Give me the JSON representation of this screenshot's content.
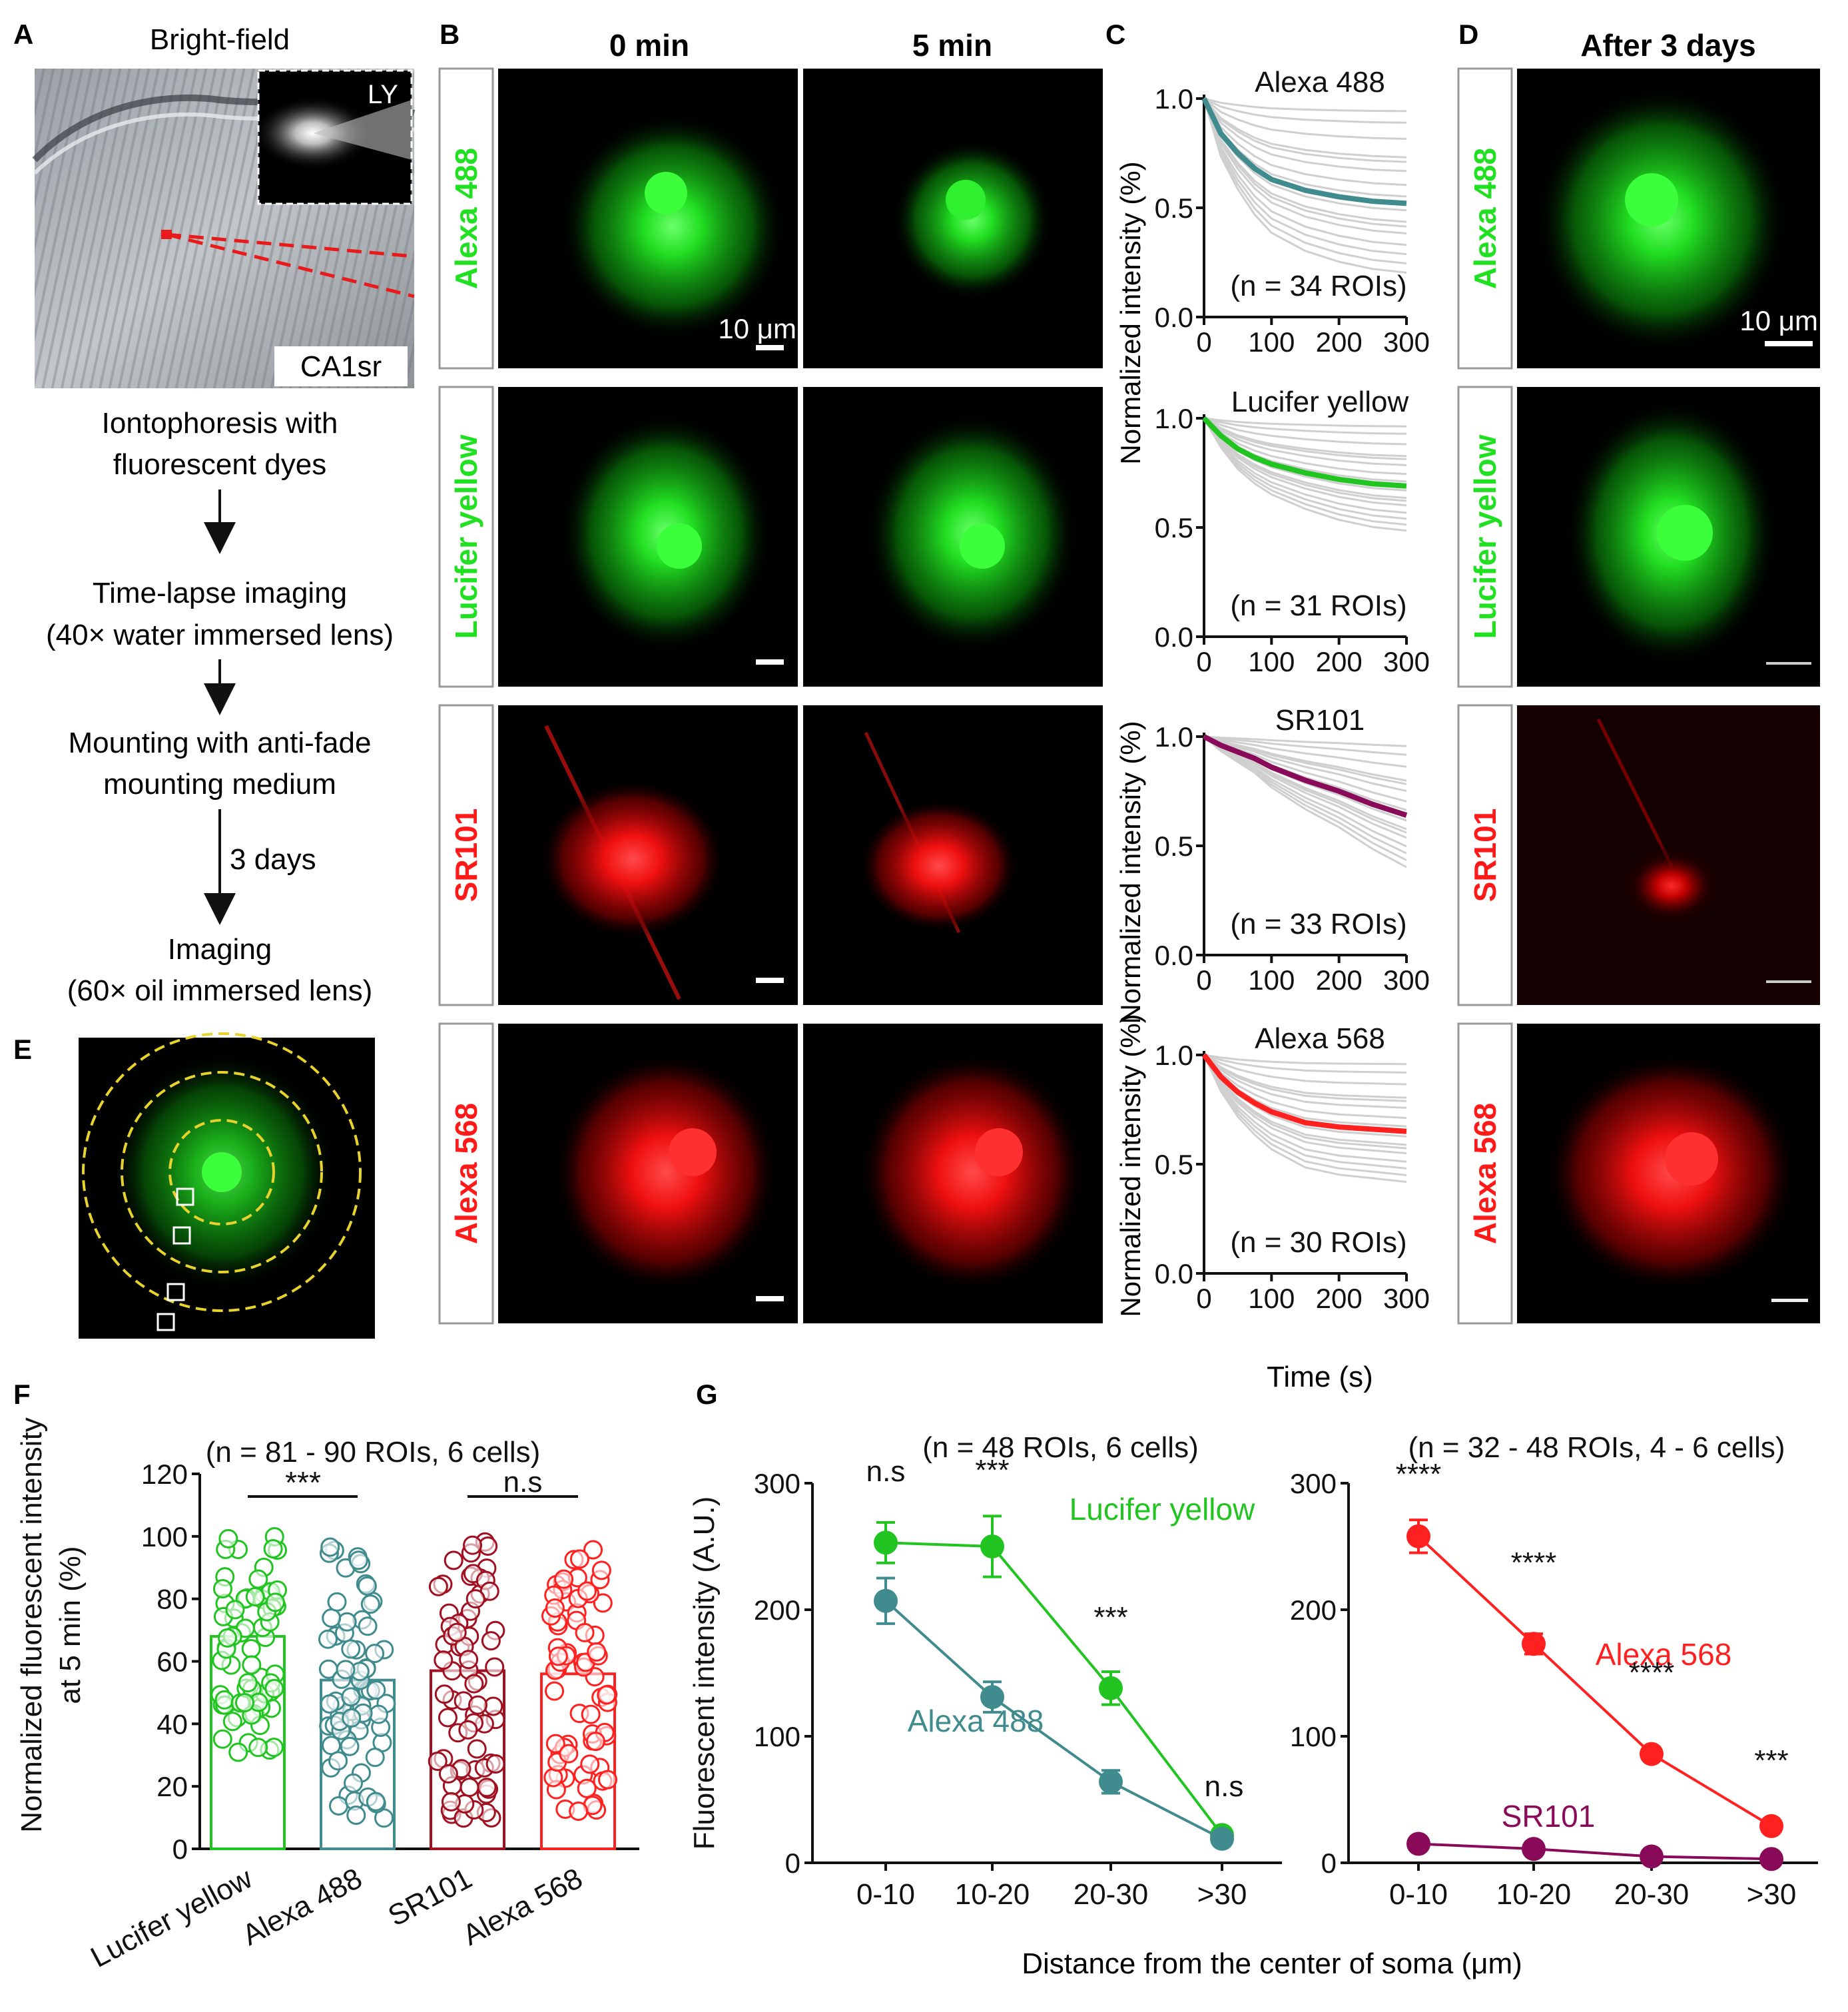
{
  "panels": {
    "A": "A",
    "B": "B",
    "C": "C",
    "D": "D",
    "E": "E",
    "F": "F",
    "G": "G"
  },
  "colors": {
    "alexa488": "#21e021",
    "lucifer": "#21e021",
    "sr101": "#ff1a1a",
    "alexa568": "#ff1a1a",
    "teal": "#3f8b8e",
    "green": "#22c422",
    "maroon": "#8a0a5a",
    "red": "#ff2020",
    "ring": "#e8d22c"
  },
  "panelA": {
    "title": "Bright-field",
    "inset_label": "LY",
    "region_label": "CA1sr",
    "steps": [
      "Iontophoresis with",
      "fluorescent dyes",
      "Time-lapse imaging",
      "(40× water immersed lens)",
      "Mounting with anti-fade",
      "mounting medium",
      "Imaging",
      "(60× oil immersed lens)"
    ],
    "arrow_label": "3 days"
  },
  "panelB": {
    "col_headers": [
      "0 min",
      "5 min"
    ],
    "row_labels": [
      "Alexa 488",
      "Lucifer yellow",
      "SR101",
      "Alexa 568"
    ],
    "scale_text": "10 μm"
  },
  "panelC": {
    "ylabel": "Normalized intensity (%)",
    "xlabel": "Time (s)",
    "yticks": [
      "0.0",
      "0.5",
      "1.0"
    ],
    "xticks": [
      "0",
      "100",
      "200",
      "300"
    ],
    "titles": [
      "Alexa 488",
      "Lucifer yellow",
      "SR101",
      "Alexa 568"
    ],
    "n_labels": [
      "(n = 34 ROIs)",
      "(n = 31 ROIs)",
      "(n = 33 ROIs)",
      "(n = 30 ROIs)"
    ]
  },
  "panelD": {
    "header": "After 3 days",
    "row_labels": [
      "Alexa 488",
      "Lucifer yellow",
      "SR101",
      "Alexa 568"
    ],
    "scale_text": "10 μm"
  },
  "chart_data": [
    {
      "type": "line",
      "title": "Alexa 488",
      "n": "(n = 34 ROIs)",
      "xlabel": "Time (s)",
      "ylabel": "Normalized intensity (%)",
      "xlim": [
        0,
        300
      ],
      "ylim": [
        0,
        1
      ],
      "mean_curve": {
        "x": [
          0,
          25,
          50,
          75,
          100,
          150,
          200,
          250,
          300
        ],
        "y": [
          1.0,
          0.84,
          0.75,
          0.68,
          0.63,
          0.58,
          0.55,
          0.53,
          0.52
        ]
      }
    },
    {
      "type": "line",
      "title": "Lucifer yellow",
      "n": "(n = 31 ROIs)",
      "xlabel": "Time (s)",
      "ylabel": "Normalized intensity (%)",
      "xlim": [
        0,
        300
      ],
      "ylim": [
        0,
        1
      ],
      "mean_curve": {
        "x": [
          0,
          25,
          50,
          75,
          100,
          150,
          200,
          250,
          300
        ],
        "y": [
          1.0,
          0.92,
          0.86,
          0.82,
          0.79,
          0.75,
          0.72,
          0.7,
          0.69
        ]
      }
    },
    {
      "type": "line",
      "title": "SR101",
      "n": "(n = 33 ROIs)",
      "xlabel": "Time (s)",
      "ylabel": "Normalized intensity (%)",
      "xlim": [
        0,
        300
      ],
      "ylim": [
        0,
        1
      ],
      "mean_curve": {
        "x": [
          0,
          25,
          50,
          75,
          100,
          150,
          200,
          250,
          300
        ],
        "y": [
          1.0,
          0.96,
          0.93,
          0.9,
          0.86,
          0.8,
          0.75,
          0.69,
          0.64
        ]
      }
    },
    {
      "type": "line",
      "title": "Alexa 568",
      "n": "(n = 30 ROIs)",
      "xlabel": "Time (s)",
      "ylabel": "Normalized intensity (%)",
      "xlim": [
        0,
        300
      ],
      "ylim": [
        0,
        1
      ],
      "mean_curve": {
        "x": [
          0,
          25,
          50,
          75,
          100,
          150,
          200,
          250,
          300
        ],
        "y": [
          1.0,
          0.9,
          0.83,
          0.78,
          0.74,
          0.69,
          0.67,
          0.66,
          0.65
        ]
      }
    },
    {
      "type": "bar",
      "title": "(n = 81 - 90 ROIs, 6 cells)",
      "ylabel_lines": [
        "Normalized fluorescent intensity",
        "at 5 min (%)"
      ],
      "categories": [
        "Lucifer yellow",
        "Alexa 488",
        "SR101",
        "Alexa 568"
      ],
      "values": [
        68,
        54,
        57,
        56
      ],
      "ylim": [
        0,
        120
      ],
      "yticks": [
        "0",
        "20",
        "40",
        "60",
        "80",
        "100",
        "120"
      ],
      "significance": [
        "***",
        "n.s"
      ]
    },
    {
      "type": "line",
      "title": "(n = 48 ROIs, 6 cells)",
      "ylabel": "Fluorescent intensity (A.U.)",
      "categories": [
        "0-10",
        "10-20",
        "20-30",
        ">30"
      ],
      "ylim": [
        0,
        300
      ],
      "yticks": [
        "0",
        "100",
        "200",
        "300"
      ],
      "series": [
        {
          "name": "Lucifer yellow",
          "values": [
            253,
            250,
            138,
            22
          ],
          "errors": [
            16,
            24,
            13,
            5
          ]
        },
        {
          "name": "Alexa 488",
          "values": [
            207,
            131,
            64,
            19
          ],
          "errors": [
            18,
            12,
            9,
            3
          ]
        }
      ],
      "significance": [
        "n.s",
        "***",
        "***",
        "n.s"
      ]
    },
    {
      "type": "line",
      "title": "(n = 32 - 48 ROIs, 4 - 6 cells)",
      "categories": [
        "0-10",
        "10-20",
        "20-30",
        ">30"
      ],
      "ylim": [
        0,
        300
      ],
      "yticks": [
        "0",
        "100",
        "200",
        "300"
      ],
      "series": [
        {
          "name": "Alexa 568",
          "values": [
            258,
            173,
            86,
            29
          ],
          "errors": [
            13,
            8,
            5,
            3
          ]
        },
        {
          "name": "SR101",
          "values": [
            15,
            11,
            5,
            3
          ],
          "errors": [
            2,
            2,
            1,
            1
          ]
        }
      ],
      "significance": [
        "****",
        "****",
        "****",
        "***"
      ]
    }
  ],
  "panelG": {
    "xlabel": "Distance from the center of soma (μm)"
  }
}
